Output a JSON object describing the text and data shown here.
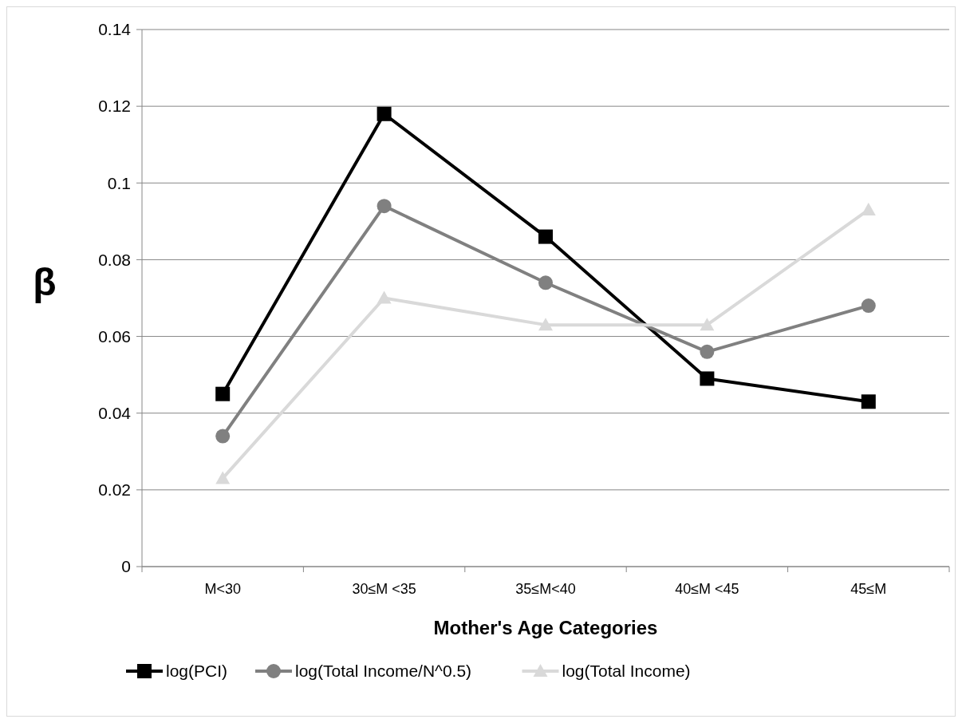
{
  "chart_data": {
    "type": "line",
    "xlabel": "Mother's Age Categories",
    "ylabel": "β",
    "categories": [
      "M<30",
      "30≤M <35",
      "35≤M<40",
      "40≤M <45",
      "45≤M"
    ],
    "series": [
      {
        "name": "log(PCI)",
        "color": "#000000",
        "marker": "square",
        "values": [
          0.045,
          0.118,
          0.086,
          0.049,
          0.043
        ]
      },
      {
        "name": "log(Total Income/N^0.5)",
        "color": "#808080",
        "marker": "circle",
        "values": [
          0.034,
          0.094,
          0.074,
          0.056,
          0.068
        ]
      },
      {
        "name": "log(Total Income)",
        "color": "#d9d9d9",
        "marker": "triangle",
        "values": [
          0.023,
          0.07,
          0.063,
          0.063,
          0.093
        ]
      }
    ],
    "ylim": [
      0,
      0.14
    ],
    "yticks": [
      0,
      0.02,
      0.04,
      0.06,
      0.08,
      0.1,
      0.12,
      0.14
    ],
    "grid": "y",
    "legend": "bottom",
    "line_style": "solid"
  }
}
